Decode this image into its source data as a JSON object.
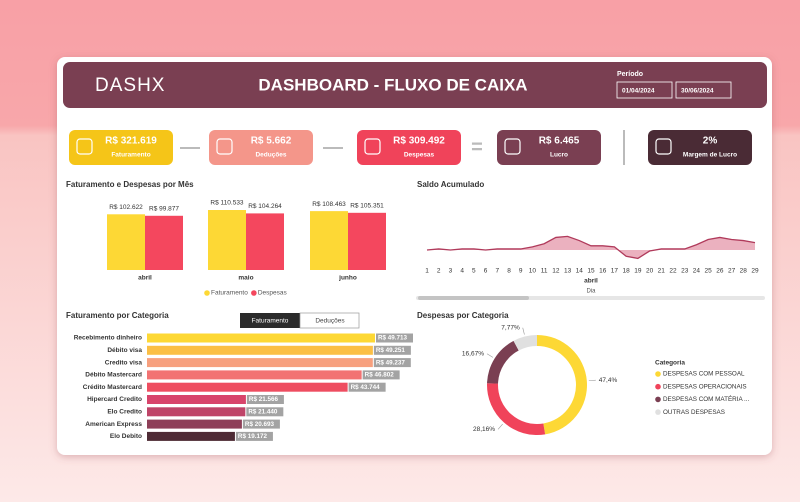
{
  "header": {
    "logo": "DASHX",
    "title": "DASHBOARD - FLUXO DE CAIXA",
    "period_label": "Período",
    "start_date": "01/04/2024",
    "end_date": "30/06/2024"
  },
  "kpis": [
    {
      "value": "R$ 321.619",
      "label": "Faturamento",
      "color": "#f5c518"
    },
    {
      "value": "R$ 5.662",
      "label": "Deduções",
      "color": "#f4968a"
    },
    {
      "value": "R$ 309.492",
      "label": "Despesas",
      "color": "#f0435a"
    },
    {
      "value": "R$ 6.465",
      "label": "Lucro",
      "color": "#7a3f52"
    },
    {
      "value": "2%",
      "label": "Margem de Lucro",
      "color": "#4a2b35"
    }
  ],
  "operators": [
    "—",
    "—",
    "="
  ],
  "chart_data": [
    {
      "type": "bar",
      "title": "Faturamento e Despesas por Mês",
      "categories": [
        "abril",
        "maio",
        "junho"
      ],
      "legend": "bottom",
      "series": [
        {
          "name": "Faturamento",
          "color": "#fdd835",
          "values": [
            102622,
            110533,
            108463
          ],
          "value_labels": [
            "R$ 102.622",
            "R$ 110.533",
            "R$ 108.463"
          ]
        },
        {
          "name": "Despesas",
          "color": "#f4475e",
          "values": [
            99877,
            104264,
            105351
          ],
          "value_labels": [
            "R$ 99.877",
            "R$ 104.264",
            "R$ 105.351"
          ]
        }
      ]
    },
    {
      "type": "line",
      "title": "Saldo Acumulado",
      "x": [
        1,
        2,
        3,
        4,
        5,
        6,
        7,
        8,
        9,
        10,
        11,
        12,
        13,
        14,
        15,
        16,
        17,
        18,
        19,
        20,
        21,
        22,
        23,
        24,
        25,
        26,
        27,
        28,
        29
      ],
      "x_group": "abril",
      "xlabel": "Dia",
      "color": "#b03a5b",
      "values": [
        0,
        1,
        0,
        1,
        1,
        0,
        1,
        1,
        1,
        3,
        6,
        12,
        13,
        9,
        4,
        4,
        3,
        -6,
        -8,
        -1,
        1,
        1,
        1,
        5,
        10,
        12,
        10,
        9,
        7
      ]
    },
    {
      "type": "hbar",
      "title": "Faturamento por Categoria",
      "tabs": [
        "Faturamento",
        "Deduções"
      ],
      "categories": [
        "Recebimento dinheiro",
        "Débito visa",
        "Credito visa",
        "Débito Mastercard",
        "Crédito Mastercard",
        "Hipercard Credito",
        "Elo Credito",
        "American Express",
        "Elo Debito"
      ],
      "values": [
        49713,
        49251,
        49237,
        46802,
        43744,
        21566,
        21440,
        20693,
        19172
      ],
      "value_labels": [
        "R$ 49.713",
        "R$ 49.251",
        "R$ 49.237",
        "R$ 46.802",
        "R$ 43.744",
        "R$ 21.566",
        "R$ 21.440",
        "R$ 20.693",
        "R$ 19.172"
      ],
      "colors": [
        "#fdd835",
        "#fbbf45",
        "#f7a07e",
        "#f27373",
        "#ee4d60",
        "#d8446b",
        "#bf4468",
        "#8e3f58",
        "#4e2b35"
      ]
    },
    {
      "type": "donut",
      "title": "Despesas por Categoria",
      "legend_title": "Categoria",
      "legend": "right",
      "categories": [
        "DESPESAS COM PESSOAL",
        "DESPESAS OPERACIONAIS",
        "DESPESAS COM MATÉRIA ...",
        "OUTRAS DESPESAS"
      ],
      "values": [
        47.4,
        28.16,
        16.67,
        7.77
      ],
      "value_labels": [
        "47,4%",
        "28,16%",
        "16,67%",
        "7,77%"
      ],
      "colors": [
        "#fdd835",
        "#f0435a",
        "#7a3f52",
        "#e0e0e0"
      ]
    }
  ]
}
